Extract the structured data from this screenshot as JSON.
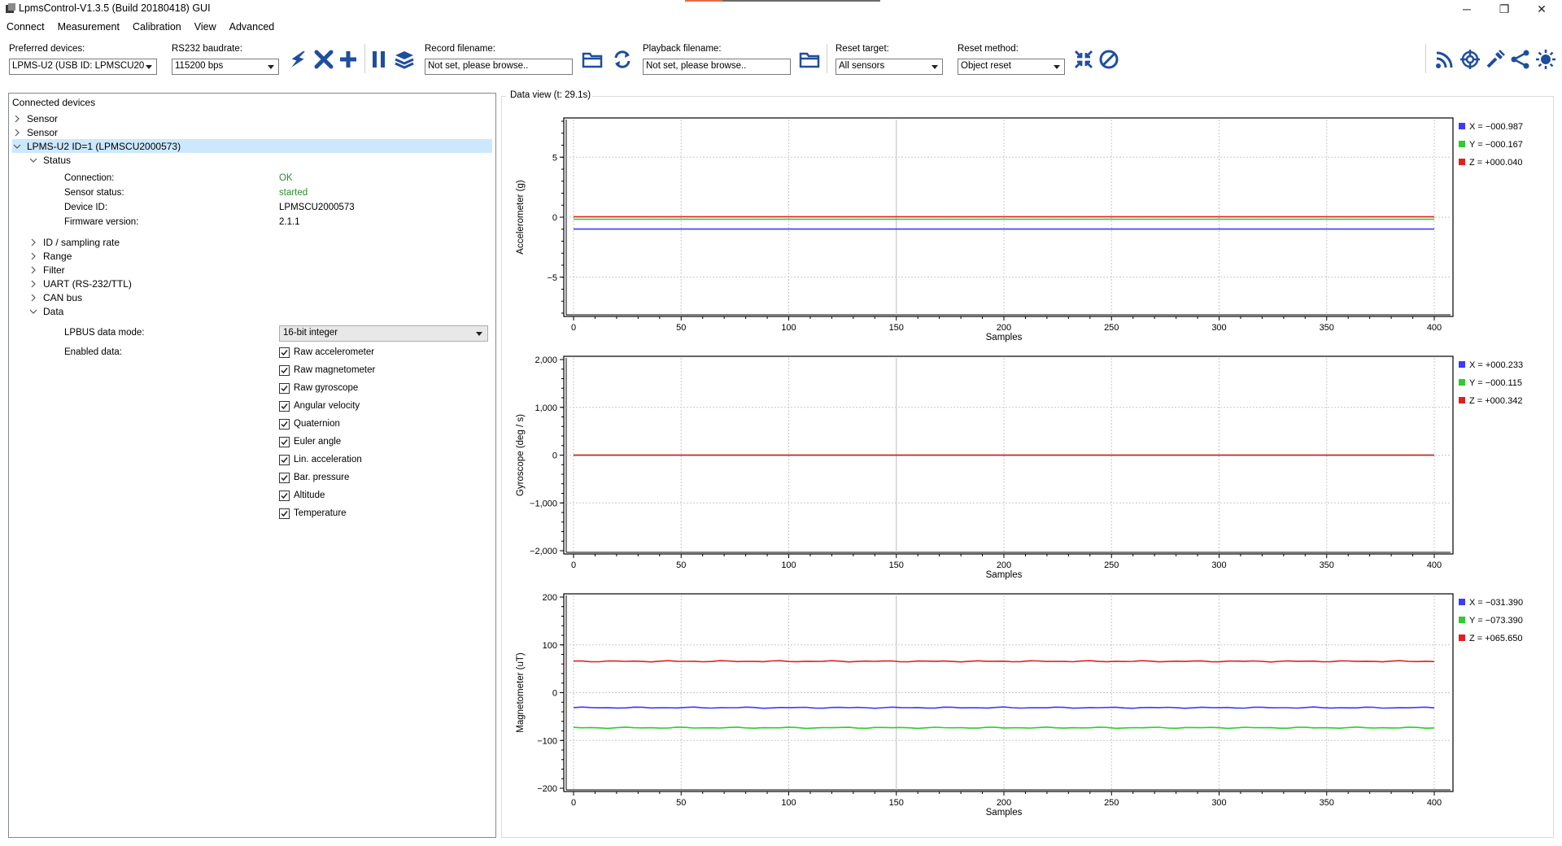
{
  "window": {
    "title": "LpmsControl-V1.3.5 (Build 20180418) GUI",
    "minimize": "─",
    "maximize": "❐",
    "close": "✕"
  },
  "menu": [
    "Connect",
    "Measurement",
    "Calibration",
    "View",
    "Advanced"
  ],
  "toolbar": {
    "preferred_devices_label": "Preferred devices:",
    "preferred_devices_value": "LPMS-U2 (USB ID: LPMSCU20",
    "baudrate_label": "RS232 baudrate:",
    "baudrate_value": "115200 bps",
    "record_label": "Record filename:",
    "record_value": "Not set, please browse..",
    "playback_label": "Playback filename:",
    "playback_value": "Not set, please browse..",
    "reset_target_label": "Reset target:",
    "reset_target_value": "All sensors",
    "reset_method_label": "Reset method:",
    "reset_method_value": "Object reset",
    "icons": [
      "connect-icon",
      "disconnect-icon",
      "add-sensor-icon",
      "pause-icon",
      "layers-icon",
      "open-record-folder-icon",
      "refresh-icon",
      "open-playback-folder-icon",
      "reset-icon",
      "stop-icon",
      "rss-icon",
      "target-icon",
      "calibrate-icon",
      "share-icon",
      "sun-icon"
    ],
    "accent_color": "#1f4e9e"
  },
  "left_panel": {
    "header": "Connected devices",
    "tree": [
      {
        "label": "Sensor",
        "expanded": false
      },
      {
        "label": "Sensor",
        "expanded": false
      },
      {
        "label": "LPMS-U2 ID=1 (LPMSCU2000573)",
        "expanded": true,
        "selected": true
      }
    ],
    "status_label": "Status",
    "status_props": [
      {
        "label": "Connection:",
        "value": "OK",
        "color": "green"
      },
      {
        "label": "Sensor status:",
        "value": "started",
        "color": "green"
      },
      {
        "label": "Device ID:",
        "value": "LPMSCU2000573",
        "color": "black"
      },
      {
        "label": "Firmware version:",
        "value": "2.1.1",
        "color": "black"
      }
    ],
    "subsections": [
      "ID / sampling rate",
      "Range",
      "Filter",
      "UART (RS-232/TTL)",
      "CAN bus"
    ],
    "data_label": "Data",
    "lpbus_label": "LPBUS data mode:",
    "lpbus_value": "16-bit integer",
    "enabled_label": "Enabled data:",
    "enabled_items": [
      "Raw accelerometer",
      "Raw magnetometer",
      "Raw gyroscope",
      "Angular velocity",
      "Quaternion",
      "Euler angle",
      "Lin. acceleration",
      "Bar. pressure",
      "Altitude",
      "Temperature"
    ]
  },
  "data_view": {
    "label": "Data view (t: 29.1s)"
  },
  "chart_data": [
    {
      "type": "line",
      "ylabel": "Accelerometer (g)",
      "xlabel": "Samples",
      "xlim": [
        0,
        400
      ],
      "ylim": [
        -8,
        8
      ],
      "xticks": [
        0,
        50,
        100,
        150,
        200,
        250,
        300,
        350,
        400
      ],
      "yticks": [
        5,
        0,
        -5
      ],
      "ytick_labels": [
        "5",
        "0",
        "−5"
      ],
      "grid": true,
      "legend": "right",
      "series": [
        {
          "name": "X = −000.987",
          "color": "#3b3bff",
          "value": -0.987
        },
        {
          "name": "Y = −000.167",
          "color": "#2ecc2e",
          "value": -0.167
        },
        {
          "name": "Z = +000.040",
          "color": "#e02020",
          "value": 0.04
        }
      ]
    },
    {
      "type": "line",
      "ylabel": "Gyroscope (deg / s)",
      "xlabel": "Samples",
      "xlim": [
        0,
        400
      ],
      "ylim": [
        -2000,
        2000
      ],
      "xticks": [
        0,
        50,
        100,
        150,
        200,
        250,
        300,
        350,
        400
      ],
      "yticks": [
        2000,
        1000,
        0,
        -1000,
        -2000
      ],
      "ytick_labels": [
        "2,000",
        "1,000",
        "0",
        "−1,000",
        "−2,000"
      ],
      "grid": true,
      "legend": "right",
      "series": [
        {
          "name": "X = +000.233",
          "color": "#3b3bff",
          "value": 0.233
        },
        {
          "name": "Y = −000.115",
          "color": "#2ecc2e",
          "value": -0.115
        },
        {
          "name": "Z = +000.342",
          "color": "#e02020",
          "value": 0.342
        }
      ]
    },
    {
      "type": "line",
      "ylabel": "Magnetometer (uT)",
      "xlabel": "Samples",
      "xlim": [
        0,
        400
      ],
      "ylim": [
        -200,
        200
      ],
      "xticks": [
        0,
        50,
        100,
        150,
        200,
        250,
        300,
        350,
        400
      ],
      "yticks": [
        200,
        100,
        0,
        -100,
        -200
      ],
      "ytick_labels": [
        "200",
        "100",
        "0",
        "−100",
        "−200"
      ],
      "grid": true,
      "legend": "right",
      "series": [
        {
          "name": "X = −031.390",
          "color": "#3b3bff",
          "value": -31.39
        },
        {
          "name": "Y = −073.390",
          "color": "#2ecc2e",
          "value": -73.39
        },
        {
          "name": "Z = +065.650",
          "color": "#e02020",
          "value": 65.65
        }
      ]
    }
  ]
}
